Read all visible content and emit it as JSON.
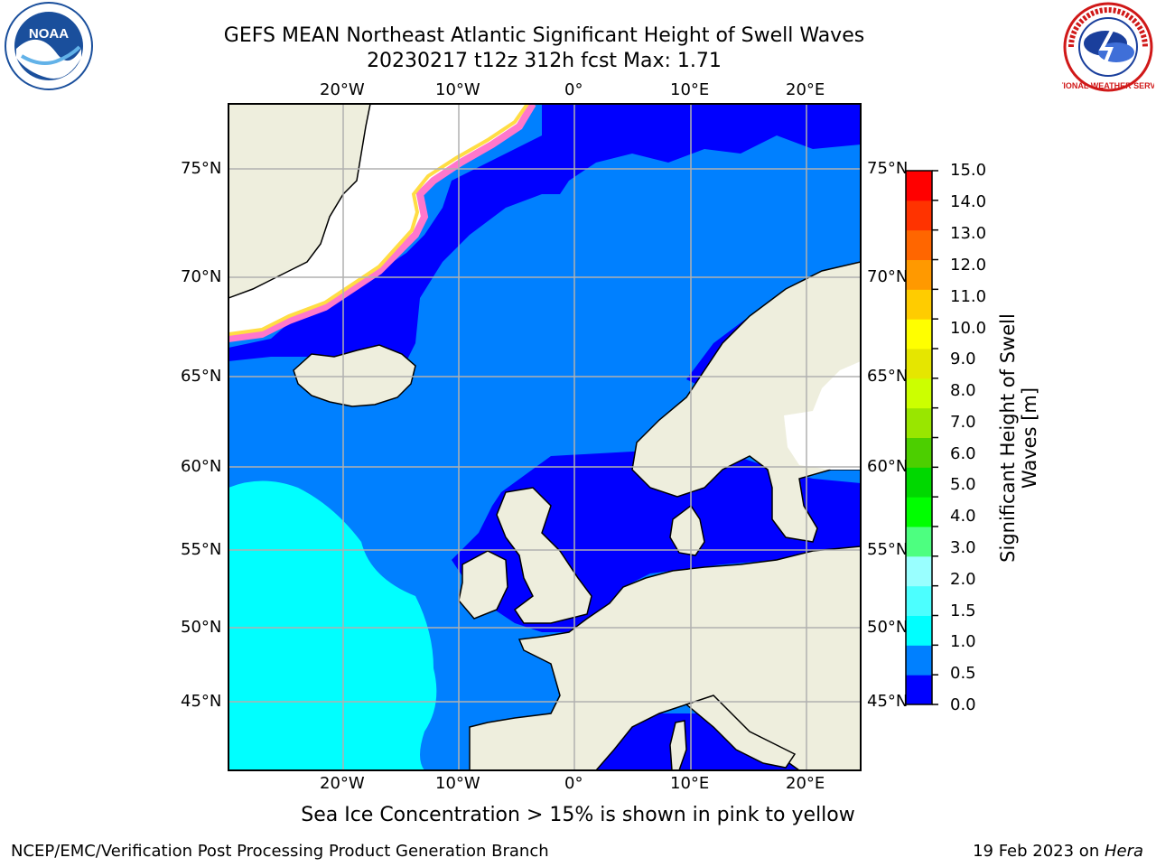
{
  "title": {
    "line1": "GEFS MEAN Northeast Atlantic Significant Height of Swell Waves",
    "line2": "20230217 t12z 312h fcst   Max: 1.71"
  },
  "logos": {
    "left": "NOAA",
    "right": "NATIONAL WEATHER SERVICE"
  },
  "map": {
    "lon_labels": [
      "20°W",
      "10°W",
      "0°",
      "10°E",
      "20°E"
    ],
    "lat_labels": [
      "75°N",
      "70°N",
      "65°N",
      "60°N",
      "55°N",
      "50°N",
      "45°N"
    ],
    "land_color": "#eeeedd",
    "water_colors": {
      "0.0-0.5": "#0000ff",
      "0.5-1.0": "#0080ff",
      "1.0-1.5": "#00ffff",
      "ice": [
        "#ff00ff",
        "#ffff00"
      ]
    }
  },
  "colorbar": {
    "label": "Significant Height of Swell Waves [m]",
    "label_line1": "Significant Height of Swell",
    "label_line2": "Waves [m]",
    "ticks": [
      "15.0",
      "14.0",
      "13.0",
      "12.0",
      "11.0",
      "10.0",
      "9.0",
      "8.0",
      "7.0",
      "6.0",
      "5.0",
      "4.0",
      "3.0",
      "2.0",
      "1.5",
      "1.0",
      "0.5",
      "0.0"
    ],
    "colors_bottom_to_top": [
      "#0000ff",
      "#0080ff",
      "#00ffff",
      "#4cffff",
      "#99ffff",
      "#4dff80",
      "#00ff00",
      "#00d800",
      "#4ccf00",
      "#99e600",
      "#ccff00",
      "#e5e600",
      "#ffff00",
      "#ffcc00",
      "#ff9900",
      "#ff6600",
      "#ff3300",
      "#ff0000"
    ]
  },
  "note": "Sea Ice Concentration > 15% is shown in pink to yellow",
  "footer": {
    "left": "NCEP/EMC/Verification Post Processing Product Generation Branch",
    "right_date": "19 Feb 2023 on ",
    "right_host": "Hera"
  }
}
